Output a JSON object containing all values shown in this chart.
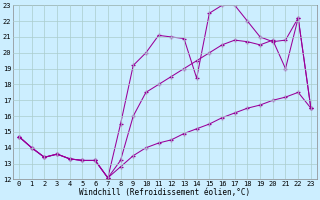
{
  "xlabel": "Windchill (Refroidissement éolien,°C)",
  "background_color": "#cceeff",
  "grid_color": "#aacccc",
  "line_color": "#990099",
  "xlim": [
    -0.5,
    23.5
  ],
  "ylim": [
    12,
    23
  ],
  "xticks": [
    0,
    1,
    2,
    3,
    4,
    5,
    6,
    7,
    8,
    9,
    10,
    11,
    12,
    13,
    14,
    15,
    16,
    17,
    18,
    19,
    20,
    21,
    22,
    23
  ],
  "yticks": [
    12,
    13,
    14,
    15,
    16,
    17,
    18,
    19,
    20,
    21,
    22,
    23
  ],
  "series": [
    {
      "x": [
        0,
        1,
        2,
        3,
        4,
        5,
        6,
        7,
        8,
        9,
        10,
        11,
        12,
        13,
        14,
        15,
        16,
        17,
        18,
        19,
        20,
        21,
        22,
        23
      ],
      "y": [
        14.7,
        14.0,
        13.4,
        13.6,
        13.3,
        13.2,
        13.2,
        12.1,
        12.8,
        13.5,
        14.0,
        14.3,
        14.5,
        14.9,
        15.2,
        15.5,
        15.9,
        16.2,
        16.5,
        16.7,
        17.0,
        17.2,
        17.5,
        16.5
      ]
    },
    {
      "x": [
        0,
        1,
        2,
        3,
        4,
        5,
        6,
        7,
        8,
        9,
        10,
        11,
        12,
        13,
        14,
        15,
        16,
        17,
        18,
        19,
        20,
        21,
        22,
        23
      ],
      "y": [
        14.7,
        14.0,
        13.4,
        13.6,
        13.3,
        13.2,
        13.2,
        12.1,
        13.2,
        16.0,
        17.5,
        18.0,
        18.5,
        19.0,
        19.5,
        20.0,
        20.5,
        20.8,
        20.7,
        20.5,
        20.8,
        19.0,
        22.2,
        16.5
      ]
    },
    {
      "x": [
        0,
        1,
        2,
        3,
        4,
        5,
        6,
        7,
        8,
        9,
        10,
        11,
        12,
        13,
        14,
        15,
        16,
        17,
        18,
        19,
        20,
        21,
        22,
        23
      ],
      "y": [
        14.7,
        14.0,
        13.4,
        13.6,
        13.3,
        13.2,
        13.2,
        12.1,
        15.5,
        19.2,
        20.0,
        21.1,
        21.0,
        20.9,
        18.4,
        22.5,
        23.0,
        23.0,
        22.0,
        21.0,
        20.7,
        20.8,
        22.2,
        16.5
      ]
    }
  ]
}
